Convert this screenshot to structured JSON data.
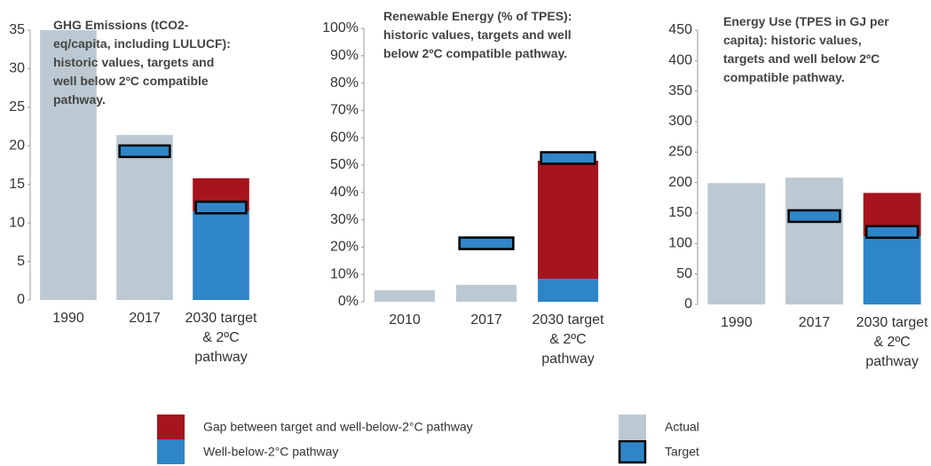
{
  "chart_data": [
    {
      "type": "bar",
      "stacked": true,
      "title": "GHG Emissions (tCO2-eq/capita, including LULUCF): historic values, targets and well below 2ºC compatible pathway.",
      "categories": [
        "1990",
        "2017",
        "2030 target & 2ºC pathway"
      ],
      "ylim": [
        0,
        35
      ],
      "yticks": [
        0,
        5,
        10,
        15,
        20,
        25,
        30,
        35
      ],
      "series": [
        {
          "name": "Actual",
          "kind": "bar",
          "color": "#bcc9d2",
          "values": [
            35,
            21.4,
            null
          ]
        },
        {
          "name": "Well-below-2°C pathway",
          "kind": "bar",
          "color": "#2e86c8",
          "values": [
            null,
            null,
            11.5
          ]
        },
        {
          "name": "Gap between target and well-below-2°C pathway",
          "kind": "bar",
          "color": "#a6141e",
          "values": [
            null,
            null,
            4.3
          ]
        },
        {
          "name": "Target",
          "kind": "marker",
          "color": "#2e86c8",
          "values": [
            null,
            19.3,
            12.0
          ]
        }
      ]
    },
    {
      "type": "bar",
      "stacked": true,
      "title": "Renewable Energy (% of TPES): historic values, targets and well below 2ºC compatible pathway.",
      "categories": [
        "2010",
        "2017",
        "2030 target & 2ºC pathway"
      ],
      "ylim": [
        0,
        100
      ],
      "yticks": [
        {
          "value": 0,
          "label": "0%"
        },
        {
          "value": 10,
          "label": "10%"
        },
        {
          "value": 20,
          "label": "20%"
        },
        {
          "value": 30,
          "label": "30%"
        },
        {
          "value": 40,
          "label": "40%"
        },
        {
          "value": 50,
          "label": "50%"
        },
        {
          "value": 60,
          "label": "60%"
        },
        {
          "value": 70,
          "label": "70%"
        },
        {
          "value": 80,
          "label": "80%"
        },
        {
          "value": 90,
          "label": "90%"
        },
        {
          "value": 100,
          "label": "100%"
        }
      ],
      "series": [
        {
          "name": "Actual",
          "kind": "bar",
          "color": "#bcc9d2",
          "values": [
            4.2,
            6.2,
            null
          ]
        },
        {
          "name": "Well-below-2°C pathway",
          "kind": "bar",
          "color": "#2e86c8",
          "values": [
            null,
            null,
            8.4
          ]
        },
        {
          "name": "Gap between target and well-below-2°C pathway",
          "kind": "bar",
          "color": "#a6141e",
          "values": [
            null,
            null,
            43.2
          ]
        },
        {
          "name": "Target",
          "kind": "marker",
          "color": "#2e86c8",
          "values": [
            null,
            21.4,
            52.6
          ]
        }
      ]
    },
    {
      "type": "bar",
      "stacked": true,
      "title": "Energy Use (TPES in GJ per capita): historic values, targets and well below 2ºC compatible pathway.",
      "categories": [
        "1990",
        "2017",
        "2030 target & 2ºC pathway"
      ],
      "ylim": [
        0,
        450
      ],
      "yticks": [
        0,
        50,
        100,
        150,
        200,
        250,
        300,
        350,
        400,
        450
      ],
      "series": [
        {
          "name": "Actual",
          "kind": "bar",
          "color": "#bcc9d2",
          "values": [
            199,
            208,
            null
          ]
        },
        {
          "name": "Well-below-2°C pathway",
          "kind": "bar",
          "color": "#2e86c8",
          "values": [
            null,
            null,
            112
          ]
        },
        {
          "name": "Gap between target and well-below-2°C pathway",
          "kind": "bar",
          "color": "#a6141e",
          "values": [
            null,
            null,
            71
          ]
        },
        {
          "name": "Target",
          "kind": "marker",
          "color": "#2e86c8",
          "values": [
            null,
            145,
            119
          ]
        }
      ]
    }
  ]
}
